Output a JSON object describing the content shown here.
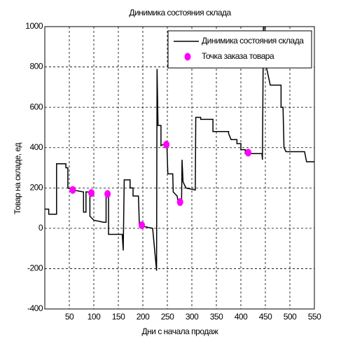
{
  "chart_data": {
    "type": "line",
    "title": "Динимика состояния склада",
    "xlabel": "Дни с начала продаж",
    "ylabel": "Товар на складе, ед",
    "xlim": [
      0,
      550
    ],
    "ylim": [
      -400,
      1000
    ],
    "xticks": [
      50,
      100,
      150,
      200,
      250,
      300,
      350,
      400,
      450,
      500,
      550
    ],
    "yticks": [
      -400,
      -200,
      0,
      200,
      400,
      600,
      800,
      1000
    ],
    "grid": true,
    "legend": "upper right",
    "series": [
      {
        "name": "Динимика состояния склада",
        "color": "#000000",
        "x": [
          0,
          8,
          8,
          24,
          24,
          43,
          43,
          47,
          47,
          57,
          79,
          79,
          84,
          84,
          92,
          92,
          100,
          120,
          125,
          125,
          130,
          130,
          158,
          160,
          162,
          174,
          174,
          180,
          180,
          191,
          193,
          200,
          220,
          228,
          229,
          231,
          237,
          237,
          246,
          249,
          251,
          261,
          262,
          270,
          272,
          279,
          280,
          282,
          288,
          307,
          308,
          318,
          318,
          343,
          343,
          375,
          375,
          380,
          392,
          392,
          400,
          400,
          409,
          409,
          443,
          444,
          446,
          449,
          452,
          460,
          482,
          482,
          486,
          488,
          492,
          530,
          534,
          550
        ],
        "values": [
          95,
          95,
          70,
          70,
          320,
          320,
          300,
          300,
          200,
          190,
          180,
          80,
          80,
          180,
          180,
          60,
          40,
          30,
          30,
          170,
          170,
          -30,
          -30,
          -110,
          240,
          240,
          200,
          200,
          160,
          160,
          10,
          10,
          0,
          -210,
          790,
          510,
          510,
          410,
          420,
          420,
          270,
          270,
          180,
          160,
          130,
          130,
          340,
          230,
          200,
          190,
          550,
          550,
          540,
          540,
          480,
          480,
          470,
          440,
          440,
          420,
          420,
          390,
          390,
          370,
          370,
          340,
          1000,
          1000,
          800,
          710,
          710,
          600,
          600,
          400,
          380,
          380,
          330,
          330
        ]
      },
      {
        "name": "Точка заказа товара",
        "color": "#ff00ff",
        "marker": true,
        "x": [
          57,
          95,
          128,
          198,
          248,
          276,
          415
        ],
        "values": [
          190,
          175,
          170,
          15,
          415,
          130,
          375
        ]
      }
    ]
  }
}
